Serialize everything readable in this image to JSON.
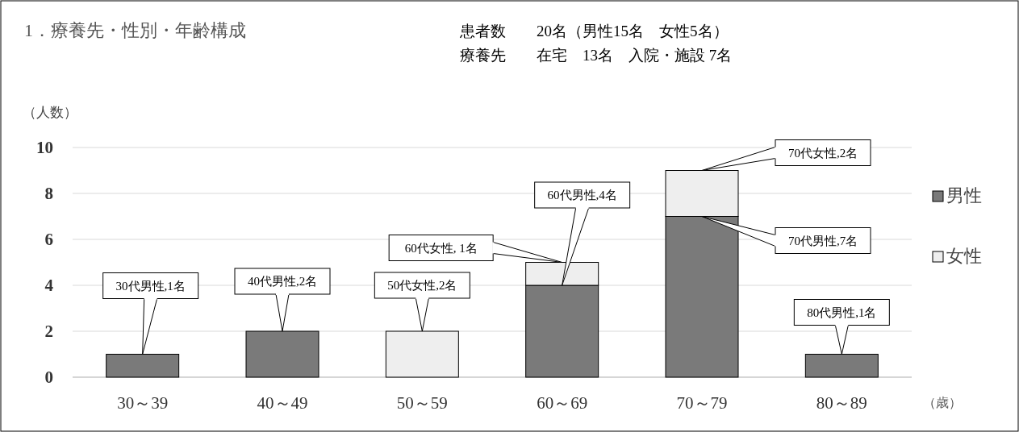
{
  "chart_data": {
    "type": "bar",
    "title": "1．療養先・性別・年齢構成",
    "ylabel": "（人数）",
    "xlabel": "（歳）",
    "annotations": [
      "患者数　　20名（男性15名　女性5名）",
      "療養先　　在宅　13名　入院・施設 7名",
      {
        "text": "30代男性,1名",
        "x": "30～39",
        "y": 1
      },
      {
        "text": "40代男性,2名",
        "x": "40～49",
        "y": 2
      },
      {
        "text": "50代女性,2名",
        "x": "50～59",
        "y": 2
      },
      {
        "text": "60代男性,4名",
        "x": "60～69",
        "y": 4
      },
      {
        "text": "60代女性, 1名",
        "x": "60～69",
        "y": 5
      },
      {
        "text": "70代女性,2名",
        "x": "70～79",
        "y": 9
      },
      {
        "text": "70代男性,7名",
        "x": "70～79",
        "y": 7
      },
      {
        "text": "80代男性,1名",
        "x": "80～89",
        "y": 1
      }
    ],
    "categories": [
      "30～39",
      "40～49",
      "50～59",
      "60～69",
      "70～79",
      "80～89"
    ],
    "stacked": true,
    "series": [
      {
        "name": "男性",
        "color": "#7a7a7a",
        "values": [
          1,
          2,
          0,
          4,
          7,
          1
        ]
      },
      {
        "name": "女性",
        "color": "#eeeeee",
        "values": [
          0,
          0,
          2,
          1,
          2,
          0
        ]
      }
    ],
    "ylim": [
      0,
      10
    ],
    "yticks": [
      0,
      2,
      4,
      6,
      8,
      10
    ],
    "grid": "y",
    "legend": "right"
  }
}
